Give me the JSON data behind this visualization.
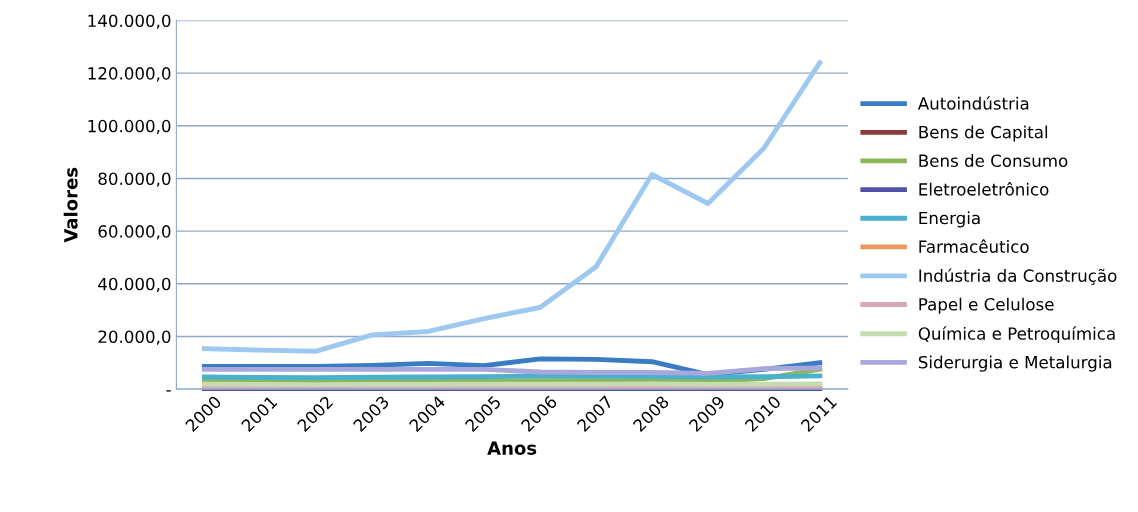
{
  "chart_data": {
    "type": "line",
    "xlabel": "Anos",
    "ylabel": "Valores",
    "categories": [
      "2000",
      "2001",
      "2002",
      "2003",
      "2004",
      "2005",
      "2006",
      "2007",
      "2008",
      "2009",
      "2010",
      "2011"
    ],
    "ylim": [
      0,
      140000
    ],
    "yticks": [
      {
        "value": 0,
        "label": "-"
      },
      {
        "value": 20000,
        "label": "20.000,0"
      },
      {
        "value": 40000,
        "label": "40.000,0"
      },
      {
        "value": 60000,
        "label": "60.000,0"
      },
      {
        "value": 80000,
        "label": "80.000,0"
      },
      {
        "value": 100000,
        "label": "100.000,0"
      },
      {
        "value": 120000,
        "label": "120.000,0"
      },
      {
        "value": 140000,
        "label": "140.000,0"
      }
    ],
    "grid": "y",
    "legend": "right",
    "marker": "none",
    "line_style": "solid",
    "series": [
      {
        "name": "Autoindústria",
        "color": "#3a7cc4",
        "values": [
          8600,
          8600,
          8600,
          9000,
          9800,
          8900,
          11500,
          11300,
          10400,
          5500,
          7500,
          10000
        ]
      },
      {
        "name": "Bens de Capital",
        "color": "#8b3a3a",
        "values": [
          null,
          null,
          null,
          null,
          null,
          null,
          null,
          null,
          null,
          null,
          null,
          null
        ]
      },
      {
        "name": "Bens de Consumo",
        "color": "#8db85a",
        "values": [
          3200,
          3000,
          2900,
          3000,
          3000,
          3100,
          3200,
          3200,
          3200,
          3000,
          4000,
          7500
        ]
      },
      {
        "name": "Eletroeletrônico",
        "color": "#5050a8",
        "values": [
          200,
          200,
          200,
          200,
          200,
          200,
          200,
          200,
          200,
          200,
          200,
          200
        ]
      },
      {
        "name": "Energia",
        "color": "#4bb0cc",
        "values": [
          4600,
          4400,
          4300,
          4500,
          4600,
          4700,
          5000,
          4900,
          4800,
          4600,
          4700,
          5000
        ]
      },
      {
        "name": "Farmacêutico",
        "color": "#e89a60",
        "values": [
          null,
          null,
          null,
          null,
          null,
          null,
          null,
          null,
          null,
          null,
          null,
          null
        ]
      },
      {
        "name": "Indústria da Construção",
        "color": "#9ec8f0",
        "values": [
          15400,
          14800,
          14400,
          20600,
          21900,
          26800,
          31000,
          46500,
          81500,
          70500,
          91500,
          124000
        ]
      },
      {
        "name": "Papel e Celulose",
        "color": "#d8a8b8",
        "values": [
          900,
          900,
          900,
          900,
          900,
          900,
          900,
          900,
          900,
          900,
          900,
          900
        ]
      },
      {
        "name": "Química e Petroquímica",
        "color": "#c4dcb0",
        "values": [
          1900,
          1800,
          1700,
          1800,
          1800,
          1900,
          1900,
          1900,
          2000,
          1800,
          1900,
          2000
        ]
      },
      {
        "name": "Siderurgia e Metalurgia",
        "color": "#a8a8dc",
        "values": [
          7500,
          7500,
          7500,
          7500,
          7500,
          7500,
          6500,
          6300,
          6300,
          6000,
          7800,
          8000
        ]
      }
    ]
  }
}
